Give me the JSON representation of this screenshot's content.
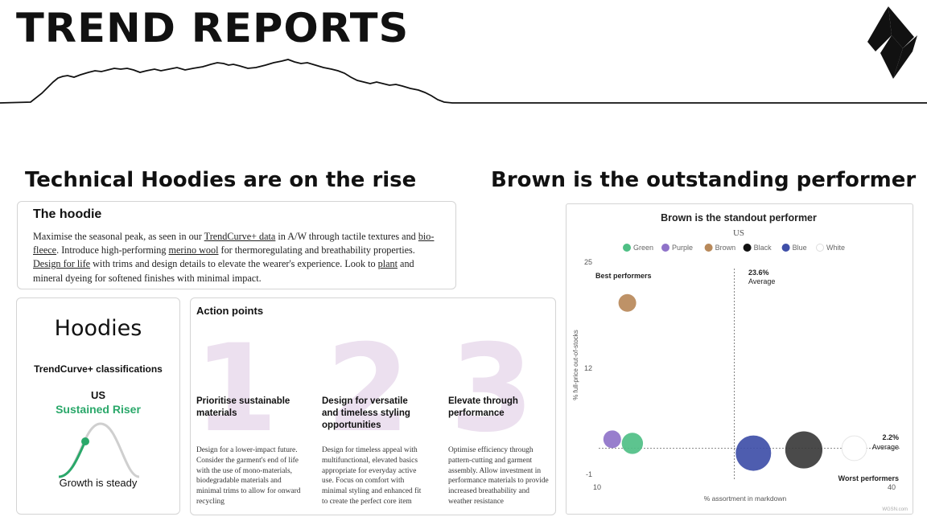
{
  "header": {
    "title": "TREND REPORTS"
  },
  "sections": {
    "left_heading": "Technical Hoodies are on the rise",
    "right_heading": "Brown is the outstanding performer"
  },
  "hoodie_card": {
    "title": "The hoodie",
    "p1": "Maximise the seasonal peak, as seen in our ",
    "link1": "TrendCurve+ data",
    "p2": " in A/W through tactile textures and ",
    "link2": "bio-fleece",
    "p3": ". Introduce high-performing ",
    "link3": "merino wool",
    "p4": " for thermoregulating and breathability properties. ",
    "link4": "Design for life",
    "p5": " with trims and design details to elevate the wearer's experience. Look to ",
    "link5": "plant",
    "p6": " and mineral dyeing for softened finishes with minimal impact."
  },
  "trend_card": {
    "title": "Hoodies",
    "classification": "TrendCurve+ classifications",
    "region": "US",
    "status": "Sustained Riser",
    "footer": "Growth is steady"
  },
  "actions": {
    "title": "Action points",
    "items": [
      {
        "number": "1",
        "heading": "Prioritise sustainable materials",
        "body": "Design for a lower-impact future. Consider the garment's end of life with the use of mono-materials, biodegradable materials and minimal trims to allow for onward recycling"
      },
      {
        "number": "2",
        "heading": "Design for versatile and timeless styling opportunities",
        "body": "Design for timeless appeal with multifunctional, elevated basics appropriate for everyday active use. Focus on comfort with minimal styling and enhanced fit to create the perfect core item"
      },
      {
        "number": "3",
        "heading": "Elevate through performance",
        "body": "Optimise efficiency through pattern-cutting and garment assembly. Allow investment in performance materials to provide increased breathability and weather resistance"
      }
    ]
  },
  "chart_data": {
    "type": "scatter",
    "title": "Brown is the standout performer",
    "subtitle": "US",
    "xlabel": "% assortment in markdown",
    "ylabel": "% full-price out-of-stocks",
    "xlim": [
      10,
      40
    ],
    "ylim": [
      -1,
      25
    ],
    "x_ticks": [
      "10",
      "40"
    ],
    "y_ticks": [
      "25",
      "12",
      "-1"
    ],
    "legend": [
      "Green",
      "Purple",
      "Brown",
      "Black",
      "Blue",
      "White"
    ],
    "legend_colors": [
      "#4fbf85",
      "#8f73c9",
      "#b8895a",
      "#111111",
      "#3f4fa8",
      "#ffffff"
    ],
    "avg_x_label": "23.6%",
    "avg_x_sub": "Average",
    "avg_y_label": "2.2%",
    "avg_y_sub": "Average",
    "avg_x": 23.6,
    "avg_y": 2.2,
    "best_label": "Best performers",
    "worst_label": "Worst performers",
    "source": "WGSN.com",
    "points": [
      {
        "name": "Brown",
        "x": 13,
        "y": 20,
        "size": 1.0,
        "color": "#b8895a"
      },
      {
        "name": "Purple",
        "x": 11.5,
        "y": 3.3,
        "size": 1.0,
        "color": "#8f73c9"
      },
      {
        "name": "Green",
        "x": 13.5,
        "y": 2.8,
        "size": 1.2,
        "color": "#4fbf85"
      },
      {
        "name": "Blue",
        "x": 25.5,
        "y": 1.6,
        "size": 2.0,
        "color": "#3f4fa8"
      },
      {
        "name": "Black",
        "x": 30.5,
        "y": 2.0,
        "size": 2.1,
        "color": "#3b3b3b"
      },
      {
        "name": "White",
        "x": 35.5,
        "y": 2.2,
        "size": 1.4,
        "color": "#ffffff"
      }
    ]
  }
}
